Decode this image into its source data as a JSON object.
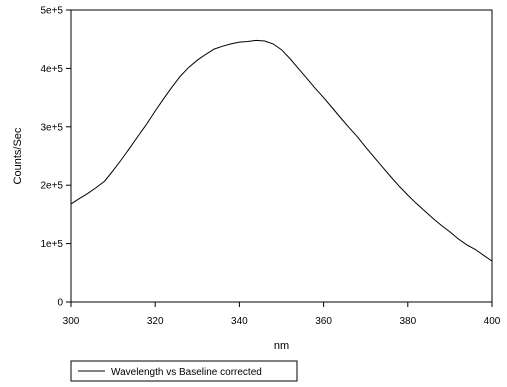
{
  "chart_data": {
    "type": "line",
    "title": "",
    "xlabel": "nm",
    "ylabel": "Counts/Sec",
    "xlim": [
      300,
      400
    ],
    "ylim": [
      0,
      500000
    ],
    "x_ticks": [
      300,
      320,
      340,
      360,
      380,
      400
    ],
    "y_ticks": [
      0,
      100000,
      200000,
      300000,
      400000,
      500000
    ],
    "x_tick_labels": [
      "300",
      "320",
      "340",
      "360",
      "380",
      "400"
    ],
    "y_tick_labels": [
      "0",
      "1e+5",
      "2e+5",
      "3e+5",
      "4e+5",
      "5e+5"
    ],
    "grid": false,
    "legend_position": "bottom-left",
    "series": [
      {
        "name": "Wavelength vs Baseline corrected",
        "color": "#000000",
        "x": [
          300,
          302,
          304,
          306,
          308,
          310,
          312,
          314,
          316,
          318,
          320,
          322,
          324,
          326,
          328,
          330,
          332,
          334,
          336,
          338,
          340,
          342,
          344,
          346,
          348,
          350,
          352,
          354,
          356,
          358,
          360,
          362,
          364,
          366,
          368,
          370,
          372,
          374,
          376,
          378,
          380,
          382,
          384,
          386,
          388,
          390,
          392,
          394,
          396,
          398,
          400
        ],
        "y": [
          168000,
          177000,
          186000,
          196000,
          207000,
          225000,
          244000,
          264000,
          285000,
          305000,
          327000,
          348000,
          368000,
          387000,
          402000,
          414000,
          424000,
          433000,
          438000,
          442000,
          445000,
          446000,
          448000,
          447000,
          442000,
          432000,
          417000,
          400000,
          383000,
          366000,
          350000,
          333000,
          316000,
          299000,
          283000,
          265000,
          248000,
          231000,
          214000,
          198000,
          183000,
          169000,
          156000,
          143000,
          131000,
          120000,
          108000,
          98000,
          90000,
          80000,
          70000
        ]
      }
    ]
  }
}
